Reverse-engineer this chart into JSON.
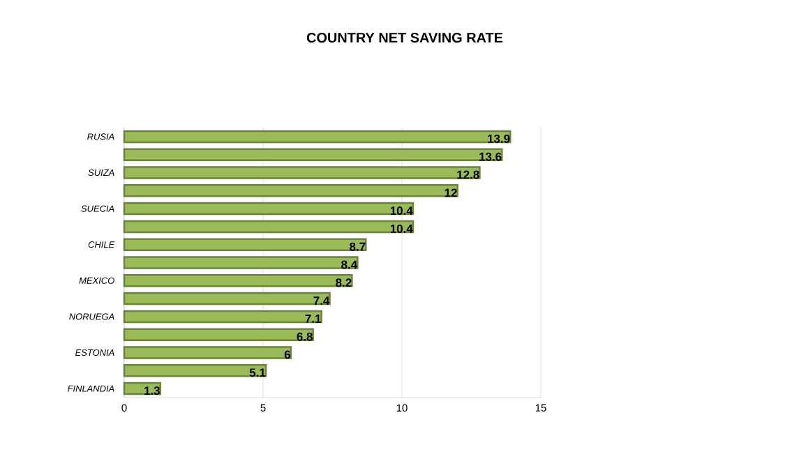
{
  "chart_data": {
    "type": "bar",
    "orientation": "horizontal",
    "title": "COUNTRY NET SAVING RATE",
    "categories": [
      "RUSIA",
      null,
      "SUIZA",
      null,
      "SUECIA",
      null,
      "CHILE",
      null,
      "MEXICO",
      null,
      "NORUEGA",
      null,
      "ESTONIA",
      null,
      "FINLANDIA"
    ],
    "values": [
      13.9,
      13.6,
      12.8,
      12,
      10.4,
      10.4,
      8.7,
      8.4,
      8.2,
      7.4,
      7.1,
      6.8,
      6,
      5.1,
      1.3
    ],
    "color": "#9bbb59",
    "xlim": [
      0,
      15
    ],
    "xticks": [
      0,
      5,
      10,
      15
    ],
    "grid": "x",
    "data_labels": true
  }
}
